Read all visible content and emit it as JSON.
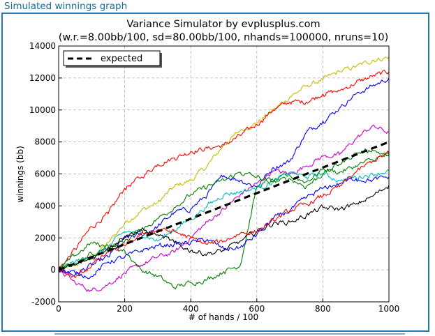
{
  "header": {
    "title": "Simulated winnings graph"
  },
  "chart_data": {
    "type": "line",
    "title": "Variance Simulator by evplusplus.com",
    "subtitle": "(w.r.=8.00bb/100, sd=80.00bb/100, nhands=100000, nruns=10)",
    "xlabel": "# of hands / 100",
    "ylabel": "winnings (bb)",
    "xlim": [
      0,
      1000
    ],
    "ylim": [
      -2000,
      14000
    ],
    "xticks": [
      0,
      200,
      400,
      600,
      800,
      1000
    ],
    "yticks": [
      -2000,
      0,
      2000,
      4000,
      6000,
      8000,
      10000,
      12000,
      14000
    ],
    "grid": true,
    "legend": {
      "position": "upper-left",
      "entries": [
        "expected"
      ]
    },
    "expected": {
      "label": "expected",
      "color": "#000000",
      "x": [
        0,
        1000
      ],
      "y": [
        0,
        8000
      ]
    },
    "series": [
      {
        "color": "#c8bb00",
        "x": [
          0,
          50,
          100,
          150,
          200,
          250,
          300,
          350,
          400,
          450,
          500,
          550,
          600,
          650,
          700,
          750,
          800,
          850,
          900,
          950,
          1000
        ],
        "y": [
          0,
          300,
          800,
          1700,
          2900,
          3700,
          4200,
          5200,
          5600,
          6500,
          7800,
          8700,
          9200,
          10000,
          10800,
          11500,
          11900,
          12400,
          12700,
          13100,
          13300
        ]
      },
      {
        "color": "#ff0000",
        "x": [
          0,
          50,
          100,
          150,
          200,
          250,
          300,
          350,
          400,
          450,
          500,
          550,
          600,
          650,
          700,
          750,
          800,
          850,
          900,
          950,
          1000
        ],
        "y": [
          0,
          1300,
          2700,
          3500,
          5100,
          5800,
          6600,
          7000,
          7400,
          7600,
          7800,
          8400,
          9100,
          10000,
          10500,
          10500,
          11000,
          11200,
          11700,
          12100,
          12400
        ]
      },
      {
        "color": "#0000ff",
        "x": [
          0,
          50,
          100,
          150,
          200,
          250,
          300,
          350,
          400,
          450,
          500,
          550,
          600,
          650,
          700,
          750,
          800,
          850,
          900,
          950,
          1000
        ],
        "y": [
          0,
          -300,
          300,
          800,
          2000,
          2200,
          2700,
          3600,
          3800,
          4700,
          5900,
          5600,
          5200,
          6400,
          6800,
          8600,
          9300,
          10100,
          11000,
          11500,
          12000
        ]
      },
      {
        "color": "#cc00cc",
        "x": [
          0,
          50,
          100,
          150,
          200,
          250,
          300,
          350,
          400,
          450,
          500,
          550,
          600,
          650,
          700,
          750,
          800,
          850,
          900,
          950,
          1000
        ],
        "y": [
          0,
          -800,
          -1300,
          -900,
          -200,
          300,
          800,
          1100,
          2000,
          3000,
          3800,
          4700,
          5400,
          6200,
          6000,
          6500,
          7100,
          7200,
          8200,
          9000,
          8600
        ]
      },
      {
        "color": "#007f00",
        "x": [
          0,
          50,
          100,
          150,
          200,
          250,
          300,
          350,
          400,
          450,
          500,
          550,
          600,
          650,
          700,
          750,
          800,
          850,
          900,
          950,
          1000
        ],
        "y": [
          0,
          400,
          1000,
          1500,
          1200,
          0,
          -400,
          -1100,
          -800,
          -600,
          -100,
          300,
          5200,
          5600,
          5900,
          5500,
          6300,
          6100,
          6500,
          6900,
          7200
        ]
      },
      {
        "color": "#00bfbf",
        "x": [
          0,
          50,
          100,
          150,
          200,
          250,
          300,
          350,
          400,
          450,
          500,
          550,
          600,
          650,
          700,
          750,
          800,
          850,
          900,
          950,
          1000
        ],
        "y": [
          0,
          500,
          800,
          1400,
          2400,
          2300,
          1800,
          2500,
          3200,
          4000,
          4700,
          4900,
          5100,
          5500,
          6100,
          5800,
          6000,
          5600,
          5800,
          6000,
          6200
        ]
      },
      {
        "color": "#007f00",
        "x": [
          0,
          50,
          100,
          150,
          200,
          250,
          300,
          350,
          400,
          450,
          500,
          550,
          600,
          650,
          700,
          750,
          800,
          850,
          900,
          950,
          1000
        ],
        "y": [
          0,
          900,
          1700,
          1400,
          1800,
          2500,
          3200,
          3900,
          4700,
          5200,
          5600,
          6100,
          5800,
          5500,
          5700,
          5200,
          6000,
          6600,
          7300,
          7500,
          7100
        ]
      },
      {
        "color": "#000000",
        "x": [
          0,
          50,
          100,
          150,
          200,
          250,
          300,
          350,
          400,
          450,
          500,
          550,
          600,
          650,
          700,
          750,
          800,
          850,
          900,
          950,
          1000
        ],
        "y": [
          0,
          300,
          700,
          1400,
          2100,
          2500,
          2200,
          1700,
          1200,
          1000,
          1200,
          1800,
          2400,
          2900,
          3000,
          3400,
          3900,
          3800,
          4100,
          4600,
          5300
        ]
      },
      {
        "color": "#0000ff",
        "x": [
          0,
          50,
          100,
          150,
          200,
          250,
          300,
          350,
          400,
          450,
          500,
          550,
          600,
          650,
          700,
          750,
          800,
          850,
          900,
          950,
          1000
        ],
        "y": [
          0,
          -200,
          -400,
          500,
          800,
          1200,
          1500,
          1600,
          1700,
          1900,
          1300,
          1400,
          2200,
          3200,
          3700,
          4500,
          5100,
          5400,
          5700,
          5600,
          5800
        ]
      },
      {
        "color": "#ff0000",
        "x": [
          0,
          50,
          100,
          150,
          200,
          250,
          300,
          350,
          400,
          450,
          500,
          550,
          600,
          650,
          700,
          750,
          800,
          850,
          900,
          950,
          1000
        ],
        "y": [
          0,
          -500,
          300,
          1100,
          1500,
          2200,
          2500,
          2400,
          2000,
          1600,
          1800,
          2300,
          2400,
          3100,
          3700,
          4100,
          4600,
          5200,
          6100,
          6800,
          7300
        ]
      }
    ]
  }
}
